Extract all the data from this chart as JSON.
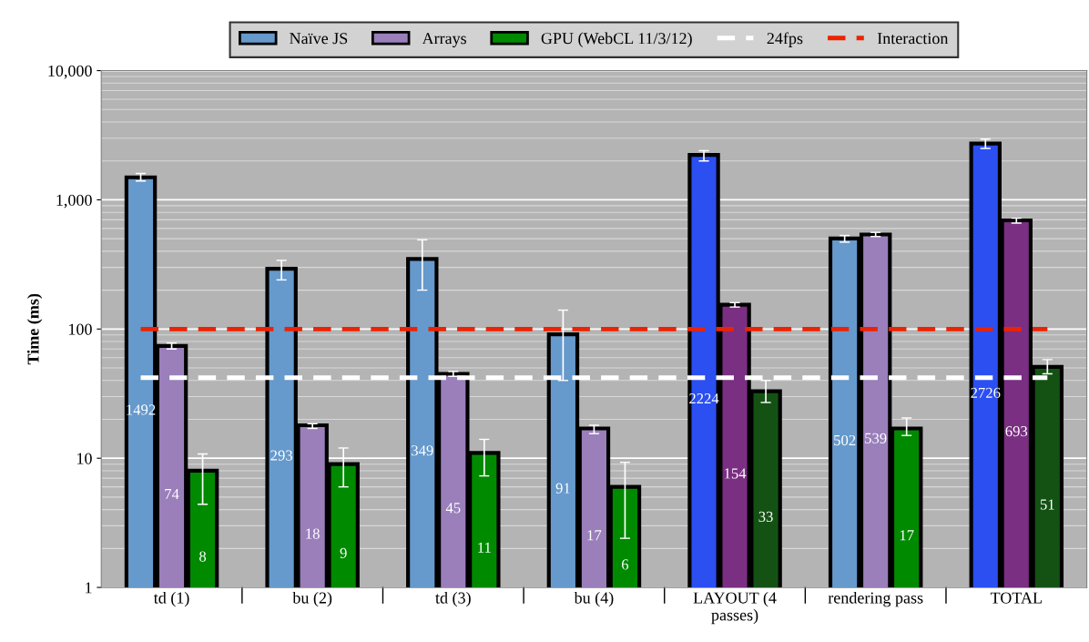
{
  "chart_data": {
    "type": "bar",
    "ylabel": "Time (ms)",
    "categories": [
      "td (1)",
      "bu (2)",
      "td (3)",
      "bu (4)",
      "LAYOUT (4\npasses)",
      "rendering pass",
      "TOTAL"
    ],
    "series": [
      {
        "name": "Naïve JS",
        "color": "#6699cc",
        "colors": [
          "#6699cc",
          "#6699cc",
          "#6699cc",
          "#6699cc",
          "#2b4ff0",
          "#6699cc",
          "#2b4ff0"
        ],
        "values": [
          1492,
          293,
          349,
          91,
          2224,
          502,
          2726
        ],
        "errors": [
          [
            1400,
            1600
          ],
          [
            240,
            340
          ],
          [
            200,
            490
          ],
          [
            40,
            140
          ],
          [
            2000,
            2400
          ],
          [
            470,
            530
          ],
          [
            2500,
            2950
          ]
        ]
      },
      {
        "name": "Arrays",
        "color": "#9a7fbb",
        "colors": [
          "#9a7fbb",
          "#9a7fbb",
          "#9a7fbb",
          "#9a7fbb",
          "#7a2f82",
          "#9a7fbb",
          "#7a2f82"
        ],
        "values": [
          74,
          18,
          45,
          17,
          154,
          539,
          693
        ],
        "errors": [
          [
            70,
            78
          ],
          [
            17,
            18.5
          ],
          [
            43,
            47
          ],
          [
            15.5,
            18
          ],
          [
            148,
            160
          ],
          [
            520,
            560
          ],
          [
            660,
            720
          ]
        ]
      },
      {
        "name": "GPU (WebCL 11/3/12)",
        "color": "#008a00",
        "colors": [
          "#008a00",
          "#008a00",
          "#008a00",
          "#008a00",
          "#145214",
          "#008a00",
          "#145214"
        ],
        "values": [
          8,
          9,
          11,
          6,
          33,
          17,
          51
        ],
        "errors": [
          [
            4.4,
            10.8
          ],
          [
            6,
            12
          ],
          [
            7.3,
            14
          ],
          [
            2.4,
            9.3
          ],
          [
            27,
            40
          ],
          [
            15,
            20.5
          ],
          [
            45,
            58
          ]
        ]
      }
    ],
    "ref_lines": [
      {
        "axis": "y",
        "value": 42,
        "label": "24fps",
        "color": "#ffffff",
        "line_style": "dashed"
      },
      {
        "axis": "y",
        "value": 100,
        "label": "Interaction",
        "color": "#ee2200",
        "line_style": "dashed"
      }
    ],
    "log": true,
    "ylim": [
      1,
      10000
    ],
    "yticks": [
      1,
      10,
      100,
      {
        "value": 1000,
        "label": "1,000"
      },
      {
        "value": 10000,
        "label": "10,000"
      }
    ],
    "grid": true,
    "legend": "top",
    "data_labels": true
  }
}
